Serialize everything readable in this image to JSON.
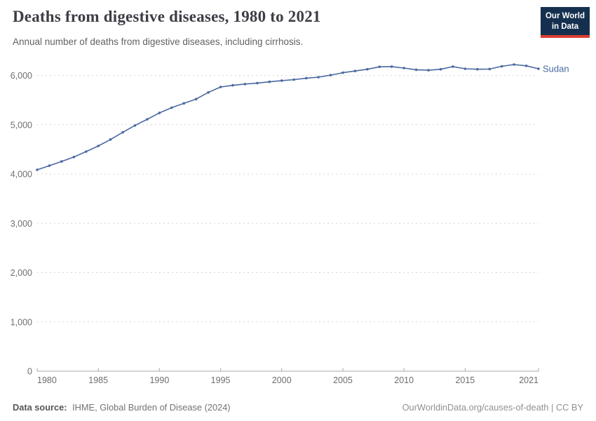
{
  "header": {
    "logo": {
      "line1": "Our World",
      "line2": "in Data",
      "bg_color": "#15304f",
      "accent_color": "#dc3e34"
    }
  },
  "chart_data": {
    "type": "line",
    "title": "Deaths from digestive diseases, 1980 to 2021",
    "subtitle": "Annual number of deaths from digestive diseases, including cirrhosis.",
    "xlabel": "",
    "ylabel": "",
    "xlim": [
      1980,
      2021
    ],
    "ylim": [
      0,
      6000
    ],
    "x_ticks": [
      1980,
      1985,
      1990,
      1995,
      2000,
      2005,
      2010,
      2015,
      2021
    ],
    "y_ticks": [
      0,
      1000,
      2000,
      3000,
      4000,
      5000,
      6000
    ],
    "y_tick_labels": [
      "0",
      "1,000",
      "2,000",
      "3,000",
      "4,000",
      "5,000",
      "6,000"
    ],
    "grid": "horizontal-dashed",
    "legend_position": "end-of-line-label",
    "colors": {
      "grid": "#d6d6d6",
      "axis": "#a8a8a8",
      "tick_label": "#6e6e6e"
    },
    "series": [
      {
        "name": "Sudan",
        "color": "#4a69a0",
        "x": [
          1980,
          1981,
          1982,
          1983,
          1984,
          1985,
          1986,
          1987,
          1988,
          1989,
          1990,
          1991,
          1992,
          1993,
          1994,
          1995,
          1996,
          1997,
          1998,
          1999,
          2000,
          2001,
          2002,
          2003,
          2004,
          2005,
          2006,
          2007,
          2008,
          2009,
          2010,
          2011,
          2012,
          2013,
          2014,
          2015,
          2016,
          2017,
          2018,
          2019,
          2020,
          2021
        ],
        "values": [
          4085,
          4170,
          4255,
          4345,
          4455,
          4570,
          4700,
          4845,
          4985,
          5110,
          5240,
          5345,
          5435,
          5520,
          5655,
          5765,
          5800,
          5825,
          5845,
          5870,
          5895,
          5915,
          5945,
          5965,
          6005,
          6055,
          6090,
          6125,
          6175,
          6180,
          6150,
          6115,
          6105,
          6125,
          6180,
          6135,
          6125,
          6130,
          6185,
          6220,
          6195,
          6135
        ]
      }
    ]
  },
  "footer": {
    "source_label": "Data source:",
    "source_value": "IHME, Global Burden of Disease (2024)",
    "credit": "OurWorldinData.org/causes-of-death | CC BY"
  }
}
